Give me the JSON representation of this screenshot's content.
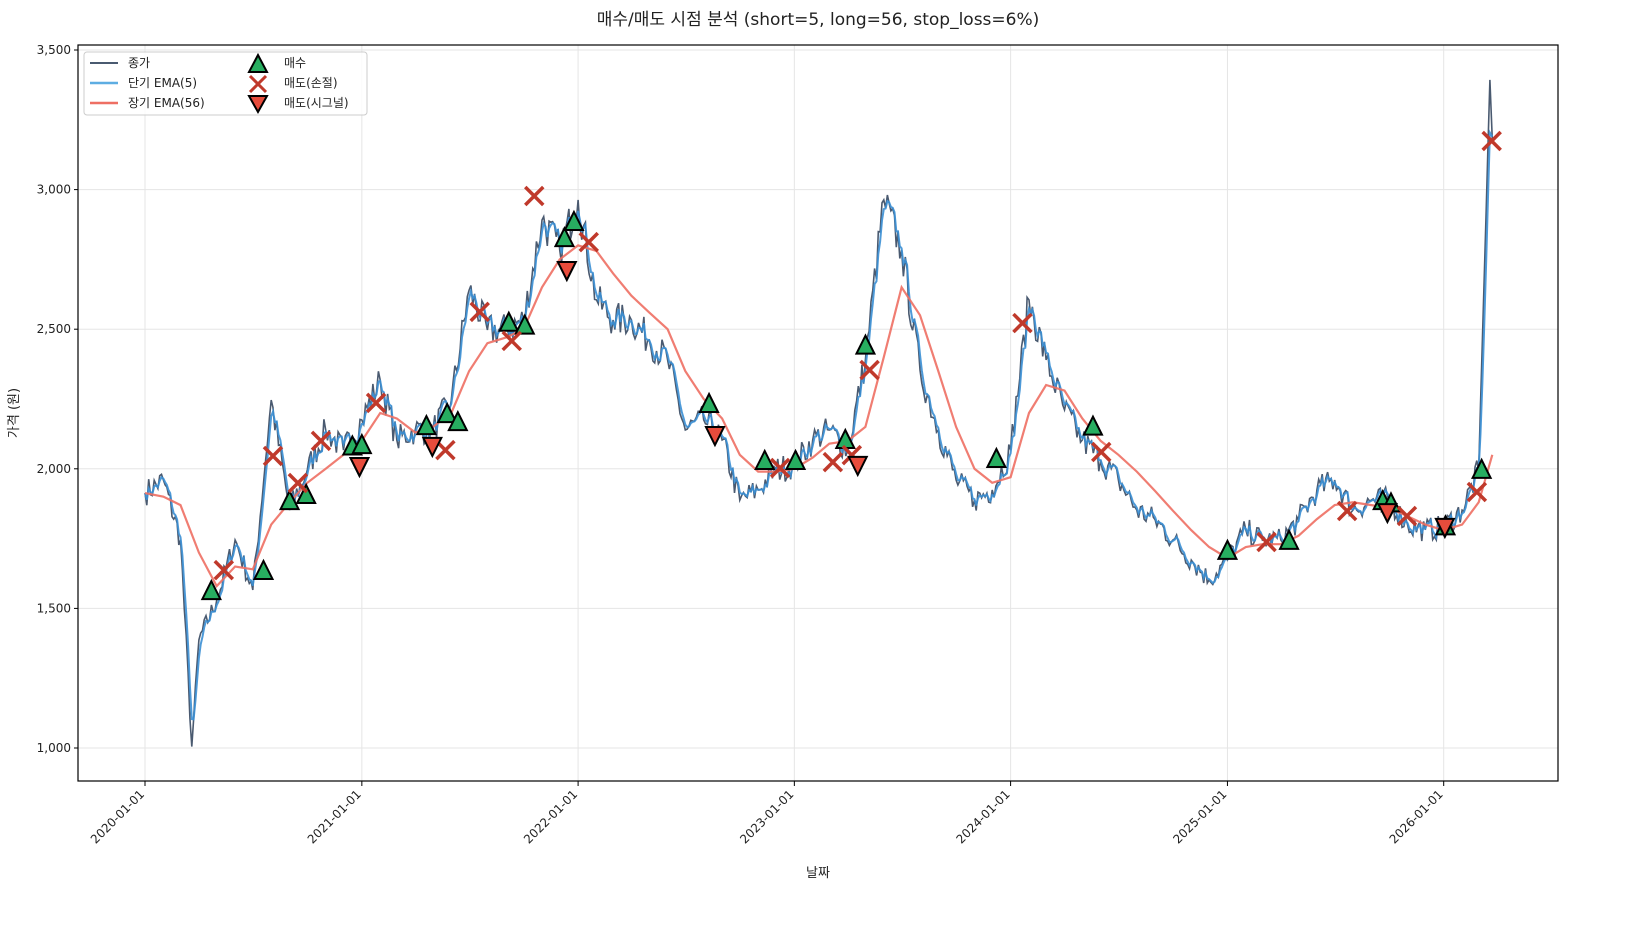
{
  "chart_data": {
    "type": "line",
    "title": "매수/매도 시점 분석 (short=5, long=56, stop_loss=6%)",
    "xlabel": "날짜",
    "ylabel": "가격 (원)",
    "ylim": [
      880,
      3500
    ],
    "xlim": [
      "2019-09-15",
      "2026-08-01"
    ],
    "grid": true,
    "legend_placement": "top-left",
    "y_ticks": [
      1000,
      1500,
      2000,
      2500,
      3000,
      3500
    ],
    "y_tick_labels": [
      "1,000",
      "1,500",
      "2,000",
      "2,500",
      "3,000",
      "3,500"
    ],
    "x_ticks": [
      "2020-01-01",
      "2021-01-01",
      "2022-01-01",
      "2023-01-01",
      "2024-01-01",
      "2025-01-01",
      "2026-01-01"
    ],
    "legend": [
      "종가",
      "단기 EMA(5)",
      "장기 EMA(56)",
      "매수",
      "매도(손절)",
      "매도(시그널)"
    ],
    "colors": {
      "close": "#4a5a70",
      "short_ema": "#3b8fd4",
      "long_ema": "#ee6f63",
      "buy": "#27ae60",
      "stop": "#c0392b",
      "signal": "#e74c3c"
    },
    "close": {
      "dates": [
        "2020-01-01",
        "2020-02-01",
        "2020-03-01",
        "2020-03-20",
        "2020-04-01",
        "2020-05-01",
        "2020-06-01",
        "2020-07-01",
        "2020-08-01",
        "2020-09-01",
        "2020-10-01",
        "2020-11-01",
        "2020-12-01",
        "2021-01-01",
        "2021-02-01",
        "2021-03-01",
        "2021-04-01",
        "2021-05-01",
        "2021-06-01",
        "2021-07-01",
        "2021-08-01",
        "2021-09-01",
        "2021-10-01",
        "2021-11-01",
        "2021-12-01",
        "2022-01-01",
        "2022-02-01",
        "2022-03-01",
        "2022-04-01",
        "2022-05-01",
        "2022-06-01",
        "2022-07-01",
        "2022-08-01",
        "2022-09-01",
        "2022-10-01",
        "2022-11-01",
        "2022-12-01",
        "2023-01-01",
        "2023-02-01",
        "2023-03-01",
        "2023-04-01",
        "2023-05-01",
        "2023-06-01",
        "2023-07-01",
        "2023-08-01",
        "2023-09-01",
        "2023-10-01",
        "2023-11-01",
        "2023-12-01",
        "2024-01-01",
        "2024-02-01",
        "2024-03-01",
        "2024-04-01",
        "2024-05-01",
        "2024-06-01",
        "2024-07-01",
        "2024-08-01",
        "2024-09-01",
        "2024-10-01",
        "2024-11-01",
        "2024-12-01",
        "2025-01-01",
        "2025-02-01",
        "2025-03-01",
        "2025-04-01",
        "2025-05-01",
        "2025-06-01",
        "2025-07-01",
        "2025-08-01",
        "2025-09-01",
        "2025-10-01",
        "2025-11-01",
        "2025-12-01",
        "2026-01-01",
        "2026-02-01",
        "2026-03-01",
        "2026-03-20",
        "2026-03-24"
      ],
      "values": [
        1913,
        1960,
        1745,
        1005,
        1387,
        1530,
        1745,
        1566,
        2246,
        1852,
        1996,
        2139,
        2067,
        2175,
        2318,
        2103,
        2139,
        2139,
        2246,
        2640,
        2497,
        2497,
        2533,
        2891,
        2784,
        2963,
        2605,
        2533,
        2533,
        2461,
        2390,
        2139,
        2175,
        2103,
        1888,
        1924,
        1996,
        2014,
        2103,
        2139,
        2067,
        2390,
        2963,
        2784,
        2354,
        2139,
        1960,
        1888,
        1924,
        2067,
        2605,
        2390,
        2211,
        2103,
        2031,
        1960,
        1852,
        1817,
        1745,
        1673,
        1602,
        1673,
        1781,
        1745,
        1745,
        1817,
        1924,
        1960,
        1852,
        1888,
        1888,
        1799,
        1781,
        1790,
        1852,
        1996,
        3393,
        3178
      ]
    },
    "long_ema": {
      "dates": [
        "2020-01-01",
        "2020-02-01",
        "2020-03-01",
        "2020-04-01",
        "2020-05-01",
        "2020-06-01",
        "2020-07-01",
        "2020-08-01",
        "2020-09-01",
        "2020-10-01",
        "2020-11-01",
        "2020-12-01",
        "2021-01-01",
        "2021-02-01",
        "2021-03-01",
        "2021-04-01",
        "2021-05-01",
        "2021-06-01",
        "2021-07-01",
        "2021-08-01",
        "2021-09-01",
        "2021-10-01",
        "2021-11-01",
        "2021-12-01",
        "2022-01-01",
        "2022-02-01",
        "2022-03-01",
        "2022-04-01",
        "2022-05-01",
        "2022-06-01",
        "2022-07-01",
        "2022-08-01",
        "2022-09-01",
        "2022-10-01",
        "2022-11-01",
        "2022-12-01",
        "2023-01-01",
        "2023-02-01",
        "2023-03-01",
        "2023-04-01",
        "2023-05-01",
        "2023-06-01",
        "2023-07-01",
        "2023-08-01",
        "2023-09-01",
        "2023-10-01",
        "2023-11-01",
        "2023-12-01",
        "2024-01-01",
        "2024-02-01",
        "2024-03-01",
        "2024-04-01",
        "2024-05-01",
        "2024-06-01",
        "2024-07-01",
        "2024-08-01",
        "2024-09-01",
        "2024-10-01",
        "2024-11-01",
        "2024-12-01",
        "2025-01-01",
        "2025-02-01",
        "2025-03-01",
        "2025-04-01",
        "2025-05-01",
        "2025-06-01",
        "2025-07-01",
        "2025-08-01",
        "2025-09-01",
        "2025-10-01",
        "2025-11-01",
        "2025-12-01",
        "2026-01-01",
        "2026-02-01",
        "2026-03-01",
        "2026-03-24"
      ],
      "values": [
        1913,
        1900,
        1870,
        1700,
        1580,
        1650,
        1640,
        1800,
        1880,
        1950,
        2000,
        2050,
        2100,
        2200,
        2180,
        2130,
        2150,
        2200,
        2350,
        2450,
        2470,
        2500,
        2650,
        2750,
        2800,
        2780,
        2700,
        2620,
        2560,
        2500,
        2350,
        2250,
        2180,
        2050,
        1990,
        1990,
        2000,
        2040,
        2090,
        2100,
        2150,
        2400,
        2650,
        2550,
        2350,
        2150,
        2000,
        1950,
        1970,
        2200,
        2300,
        2280,
        2180,
        2100,
        2050,
        1990,
        1920,
        1850,
        1780,
        1720,
        1680,
        1720,
        1730,
        1730,
        1760,
        1820,
        1870,
        1880,
        1870,
        1860,
        1830,
        1800,
        1780,
        1800,
        1880,
        2050
      ]
    },
    "buy_signals": [
      {
        "date": "2020-04-22",
        "price": 1562
      },
      {
        "date": "2020-07-19",
        "price": 1634
      },
      {
        "date": "2020-09-01",
        "price": 1884
      },
      {
        "date": "2020-09-29",
        "price": 1906
      },
      {
        "date": "2020-12-16",
        "price": 2080
      },
      {
        "date": "2021-01-01",
        "price": 2085
      },
      {
        "date": "2021-04-20",
        "price": 2153
      },
      {
        "date": "2021-05-25",
        "price": 2196
      },
      {
        "date": "2021-06-12",
        "price": 2167
      },
      {
        "date": "2021-09-06",
        "price": 2523
      },
      {
        "date": "2021-10-03",
        "price": 2513
      },
      {
        "date": "2021-12-09",
        "price": 2826
      },
      {
        "date": "2021-12-25",
        "price": 2884
      },
      {
        "date": "2022-08-10",
        "price": 2232
      },
      {
        "date": "2022-11-12",
        "price": 2028
      },
      {
        "date": "2023-01-03",
        "price": 2028
      },
      {
        "date": "2023-03-28",
        "price": 2103
      },
      {
        "date": "2023-05-01",
        "price": 2441
      },
      {
        "date": "2023-12-08",
        "price": 2035
      },
      {
        "date": "2024-05-19",
        "price": 2151
      },
      {
        "date": "2025-01-01",
        "price": 1706
      },
      {
        "date": "2025-04-15",
        "price": 1742
      },
      {
        "date": "2025-09-20",
        "price": 1884
      },
      {
        "date": "2025-10-04",
        "price": 1876
      },
      {
        "date": "2026-01-04",
        "price": 1794
      },
      {
        "date": "2026-03-06",
        "price": 1996
      }
    ],
    "stop_loss_sells": [
      {
        "date": "2020-05-13",
        "price": 1637
      },
      {
        "date": "2020-08-04",
        "price": 2046
      },
      {
        "date": "2020-09-15",
        "price": 1949
      },
      {
        "date": "2020-10-24",
        "price": 2100
      },
      {
        "date": "2021-01-25",
        "price": 2236
      },
      {
        "date": "2021-05-22",
        "price": 2067
      },
      {
        "date": "2021-07-19",
        "price": 2562
      },
      {
        "date": "2021-09-11",
        "price": 2458
      },
      {
        "date": "2021-10-19",
        "price": 2977
      },
      {
        "date": "2022-01-19",
        "price": 2812
      },
      {
        "date": "2022-12-08",
        "price": 2003
      },
      {
        "date": "2023-03-07",
        "price": 2024
      },
      {
        "date": "2023-04-08",
        "price": 2049
      },
      {
        "date": "2023-05-08",
        "price": 2354
      },
      {
        "date": "2024-01-21",
        "price": 2522
      },
      {
        "date": "2024-06-02",
        "price": 2060
      },
      {
        "date": "2025-03-08",
        "price": 1738
      },
      {
        "date": "2025-07-22",
        "price": 1849
      },
      {
        "date": "2025-10-31",
        "price": 1831
      },
      {
        "date": "2026-02-26",
        "price": 1917
      },
      {
        "date": "2026-03-23",
        "price": 3174
      }
    ],
    "signal_sells": [
      {
        "date": "2020-12-28",
        "price": 2010
      },
      {
        "date": "2021-04-30",
        "price": 2082
      },
      {
        "date": "2021-12-13",
        "price": 2712
      },
      {
        "date": "2022-08-20",
        "price": 2121
      },
      {
        "date": "2023-04-18",
        "price": 2014
      },
      {
        "date": "2025-09-28",
        "price": 1845
      },
      {
        "date": "2026-01-03",
        "price": 1792
      }
    ]
  }
}
